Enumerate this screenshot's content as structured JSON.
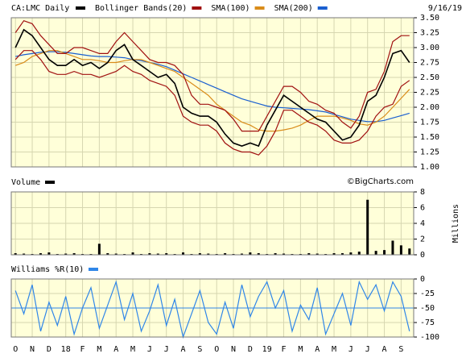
{
  "chart_data": [
    {
      "type": "line",
      "title": "CA:LMC Daily",
      "date": "9/16/19",
      "credit": "©BigCharts.com",
      "ylim": [
        1,
        3.5
      ],
      "yticks": [
        {
          "value": 1,
          "label": "1.00"
        },
        1.25,
        {
          "value": 1.5,
          "label": "1.50"
        },
        1.75,
        {
          "value": 2,
          "label": "2.00"
        },
        2.25,
        {
          "value": 2.5,
          "label": "2.50"
        },
        2.75,
        {
          "value": 3,
          "label": "3.00"
        },
        3.25,
        {
          "value": 3.5,
          "label": "3.50"
        }
      ],
      "grid": true,
      "series": [
        {
          "name": "CA:LMC Daily",
          "color": "#000000",
          "values": [
            3.0,
            3.3,
            3.2,
            3.0,
            2.8,
            2.7,
            2.7,
            2.8,
            2.7,
            2.75,
            2.65,
            2.75,
            2.95,
            3.05,
            2.8,
            2.7,
            2.6,
            2.5,
            2.55,
            2.4,
            2.0,
            1.9,
            1.85,
            1.85,
            1.75,
            1.55,
            1.4,
            1.35,
            1.4,
            1.35,
            1.7,
            1.95,
            2.2,
            2.1,
            2.0,
            1.9,
            1.8,
            1.75,
            1.6,
            1.45,
            1.5,
            1.7,
            2.1,
            2.2,
            2.5,
            2.9,
            2.95,
            2.75
          ]
        },
        {
          "name": "Bollinger Bands(20)",
          "color": "#a01010",
          "upper": [
            3.25,
            3.45,
            3.4,
            3.2,
            3.05,
            2.9,
            2.9,
            3.0,
            3.0,
            2.95,
            2.9,
            2.9,
            3.1,
            3.25,
            3.1,
            2.95,
            2.8,
            2.75,
            2.75,
            2.7,
            2.55,
            2.2,
            2.05,
            2.05,
            2.0,
            1.95,
            1.8,
            1.6,
            1.6,
            1.6,
            1.85,
            2.1,
            2.35,
            2.35,
            2.25,
            2.1,
            2.05,
            1.95,
            1.9,
            1.75,
            1.65,
            1.85,
            2.25,
            2.3,
            2.6,
            3.1,
            3.2,
            3.2
          ],
          "lower": [
            2.8,
            2.95,
            2.95,
            2.8,
            2.6,
            2.55,
            2.55,
            2.6,
            2.55,
            2.55,
            2.5,
            2.55,
            2.6,
            2.7,
            2.6,
            2.55,
            2.45,
            2.4,
            2.35,
            2.2,
            1.85,
            1.75,
            1.7,
            1.7,
            1.6,
            1.4,
            1.3,
            1.25,
            1.25,
            1.2,
            1.35,
            1.6,
            1.95,
            1.95,
            1.85,
            1.75,
            1.7,
            1.6,
            1.45,
            1.4,
            1.4,
            1.45,
            1.6,
            1.85,
            2.0,
            2.05,
            2.35,
            2.45
          ]
        },
        {
          "name": "SMA(100)",
          "color": "#d98c1a",
          "values": [
            2.7,
            2.75,
            2.85,
            2.9,
            2.95,
            2.95,
            2.9,
            2.85,
            2.8,
            2.8,
            2.78,
            2.75,
            2.75,
            2.78,
            2.8,
            2.8,
            2.75,
            2.7,
            2.65,
            2.6,
            2.5,
            2.4,
            2.3,
            2.2,
            2.05,
            1.95,
            1.85,
            1.75,
            1.7,
            1.62,
            1.6,
            1.6,
            1.62,
            1.65,
            1.7,
            1.78,
            1.85,
            1.85,
            1.85,
            1.82,
            1.78,
            1.72,
            1.7,
            1.75,
            1.85,
            2.0,
            2.15,
            2.3
          ]
        },
        {
          "name": "SMA(200)",
          "color": "#1a5fd0",
          "values": [
            2.85,
            2.88,
            2.9,
            2.92,
            2.93,
            2.93,
            2.92,
            2.9,
            2.88,
            2.86,
            2.85,
            2.85,
            2.84,
            2.83,
            2.8,
            2.78,
            2.75,
            2.72,
            2.68,
            2.62,
            2.56,
            2.5,
            2.44,
            2.38,
            2.32,
            2.26,
            2.2,
            2.14,
            2.1,
            2.06,
            2.02,
            2.0,
            1.99,
            1.98,
            1.97,
            1.96,
            1.94,
            1.92,
            1.88,
            1.84,
            1.8,
            1.78,
            1.76,
            1.76,
            1.78,
            1.82,
            1.86,
            1.9
          ]
        }
      ]
    },
    {
      "type": "bar",
      "title": "Volume",
      "y_label": "Millions",
      "color": "#000000",
      "ylim": [
        0,
        8
      ],
      "yticks": [
        0,
        2,
        4,
        6,
        8
      ],
      "grid": true,
      "values": [
        0.2,
        0.15,
        0.1,
        0.2,
        0.3,
        0.1,
        0.15,
        0.2,
        0.1,
        0.1,
        1.4,
        0.2,
        0.15,
        0.1,
        0.3,
        0.1,
        0.2,
        0.15,
        0.2,
        0.1,
        0.3,
        0.1,
        0.2,
        0.15,
        0.1,
        0.2,
        0.1,
        0.15,
        0.3,
        0.2,
        0.1,
        0.2,
        0.15,
        0.1,
        0.1,
        0.2,
        0.15,
        0.1,
        0.2,
        0.2,
        0.3,
        0.4,
        7.0,
        0.5,
        0.6,
        1.8,
        1.2,
        0.8
      ]
    },
    {
      "type": "line",
      "title": "Williams %R(10)",
      "color": "#2f86e8",
      "ylim": [
        -100,
        0
      ],
      "yticks": [
        0,
        -25,
        -50,
        -75,
        -100
      ],
      "grid": true,
      "reference_line": -50,
      "categories": [
        "O",
        null,
        "N",
        null,
        "D",
        null,
        "18",
        null,
        "F",
        null,
        "M",
        null,
        "A",
        null,
        "M",
        null,
        "J",
        null,
        "J",
        null,
        "A",
        null,
        "S",
        null,
        "O",
        null,
        "N",
        null,
        "D",
        null,
        "19",
        null,
        "F",
        null,
        "M",
        null,
        "A",
        null,
        "M",
        null,
        "J",
        null,
        "J",
        null,
        "A",
        null,
        "S",
        null
      ],
      "values": [
        -20,
        -60,
        -10,
        -90,
        -40,
        -80,
        -30,
        -95,
        -50,
        -15,
        -85,
        -45,
        -5,
        -70,
        -25,
        -90,
        -55,
        -10,
        -80,
        -35,
        -100,
        -60,
        -20,
        -75,
        -95,
        -40,
        -85,
        -10,
        -65,
        -30,
        -5,
        -50,
        -20,
        -90,
        -45,
        -70,
        -15,
        -95,
        -60,
        -25,
        -80,
        -5,
        -35,
        -10,
        -55,
        -5,
        -30,
        -90
      ]
    }
  ]
}
